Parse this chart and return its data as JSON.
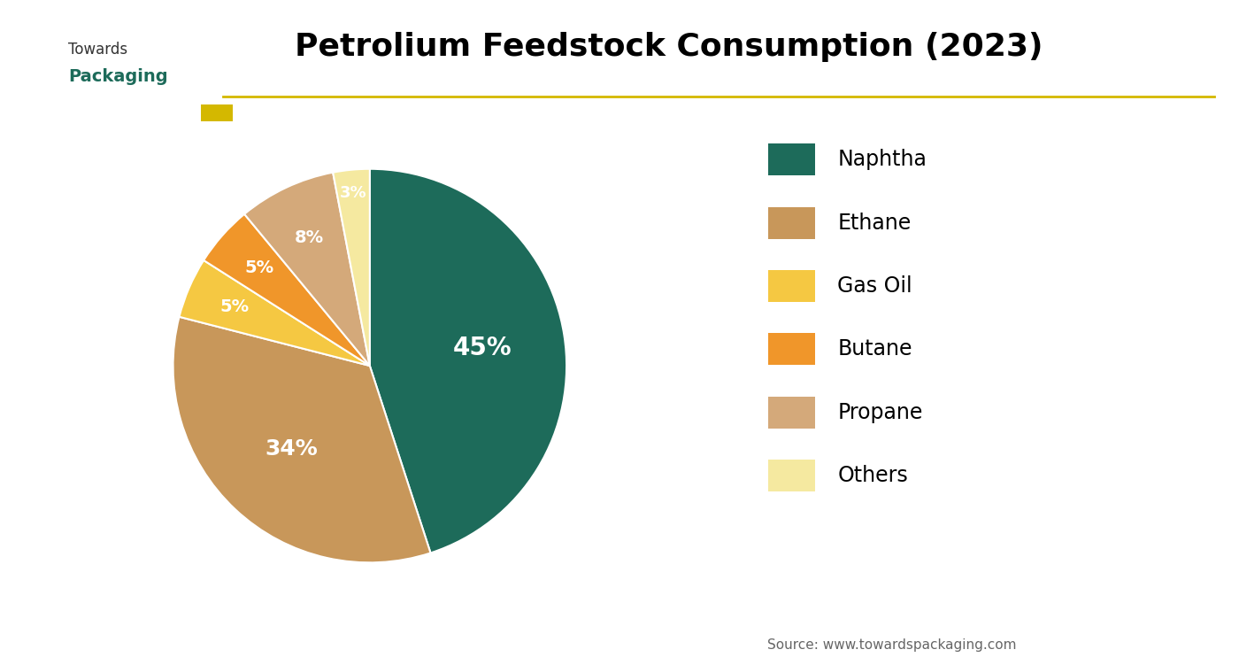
{
  "title": "Petrolium Feedstock Consumption (2023)",
  "labels": [
    "Naphtha",
    "Ethane",
    "Gas Oil",
    "Butane",
    "Propane",
    "Others"
  ],
  "values": [
    45,
    34,
    5,
    5,
    8,
    3
  ],
  "colors": [
    "#1d6b5a",
    "#c8975a",
    "#f5c842",
    "#f0962a",
    "#d4a97a",
    "#f5e9a0"
  ],
  "pct_labels": [
    "45%",
    "34%",
    "5%",
    "5%",
    "8%",
    "3%"
  ],
  "legend_colors": [
    "#1d6b5a",
    "#c8975a",
    "#f5c842",
    "#f0962a",
    "#d4a97a",
    "#f5e9a0"
  ],
  "source_text": "Source: www.towardspackaging.com",
  "bg_color": "#ffffff",
  "title_fontsize": 26,
  "legend_fontsize": 17,
  "pct_radii": [
    0.58,
    0.58,
    0.75,
    0.75,
    0.72,
    0.88
  ],
  "pct_fontsizes": [
    20,
    18,
    14,
    14,
    14,
    13
  ],
  "startangle": 90,
  "line_color": "#d4b800",
  "source_color": "#666666",
  "logo_towards_color": "#333333",
  "logo_packaging_color": "#1d6b5a"
}
